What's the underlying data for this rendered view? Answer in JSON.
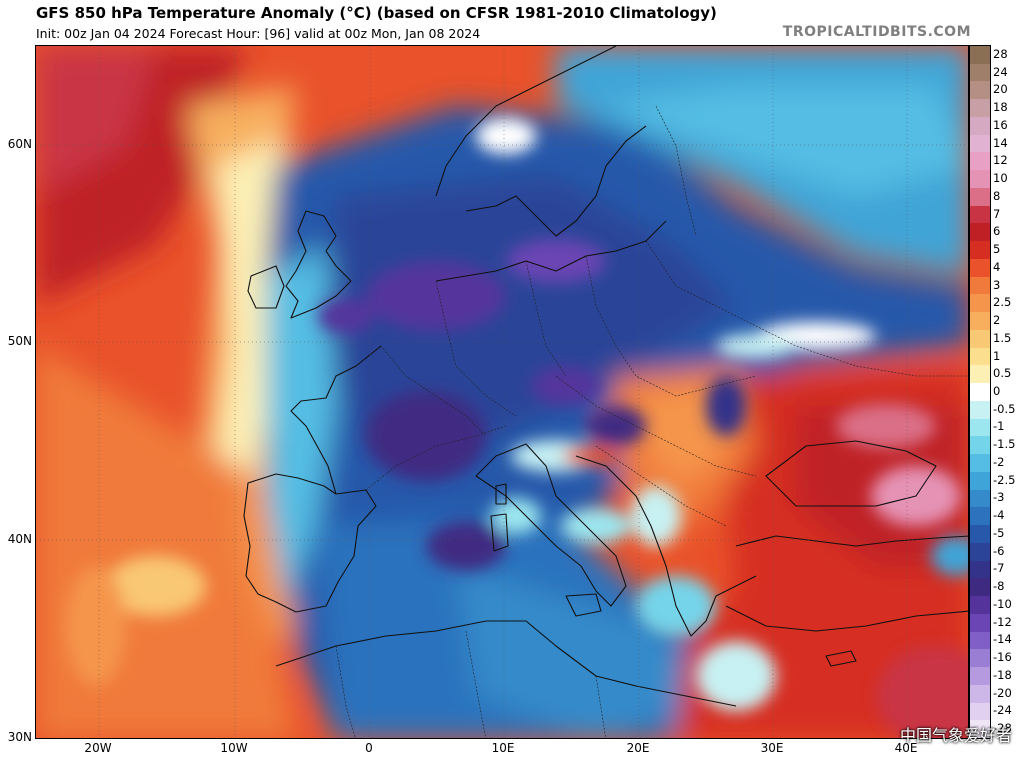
{
  "header": {
    "title": "GFS 850 hPa Temperature Anomaly (°C) (based on CFSR 1981-2010 Climatology)",
    "subtitle": "Init: 00z Jan 04 2024   Forecast Hour: [96]   valid at 00z Mon, Jan 08 2024",
    "source": "TROPICALTIDBITS.COM"
  },
  "map": {
    "lat_labels": [
      "60N",
      "50N",
      "40N",
      "30N"
    ],
    "lon_labels": [
      "20W",
      "10W",
      "0",
      "10E",
      "20E",
      "30E",
      "40E"
    ]
  },
  "legend": {
    "labels": [
      "28",
      "24",
      "20",
      "18",
      "16",
      "14",
      "12",
      "10",
      "8",
      "7",
      "6",
      "5",
      "4",
      "3",
      "2.5",
      "2",
      "1.5",
      "1",
      "0.5",
      "0",
      "-0.5",
      "-1",
      "-1.5",
      "-2",
      "-2.5",
      "-3",
      "-4",
      "-5",
      "-6",
      "-7",
      "-8",
      "-10",
      "-12",
      "-14",
      "-16",
      "-18",
      "-20",
      "-24",
      "-28"
    ],
    "colors": [
      "#8a6f55",
      "#a07f6a",
      "#b58f84",
      "#c89fa4",
      "#d6a9c2",
      "#e2b2d3",
      "#e8a1c4",
      "#e593b5",
      "#da6f87",
      "#c93444",
      "#bf2026",
      "#d62f22",
      "#e9522a",
      "#f07a3b",
      "#f5954c",
      "#f7af5e",
      "#f9c874",
      "#fbde8e",
      "#fdf0b5",
      "#ffffff",
      "#c7f1f3",
      "#9ce6ef",
      "#74d4ea",
      "#55bde3",
      "#3fa4d7",
      "#358bca",
      "#2c72bd",
      "#2858aa",
      "#2b4498",
      "#33338a",
      "#3f2a82",
      "#54349b",
      "#6a45b3",
      "#8060c6",
      "#9a7ed4",
      "#b59ae0",
      "#cdb7e9",
      "#e1d0f0",
      "#efe5f7"
    ]
  },
  "watermark": "中国气象爱好者"
}
